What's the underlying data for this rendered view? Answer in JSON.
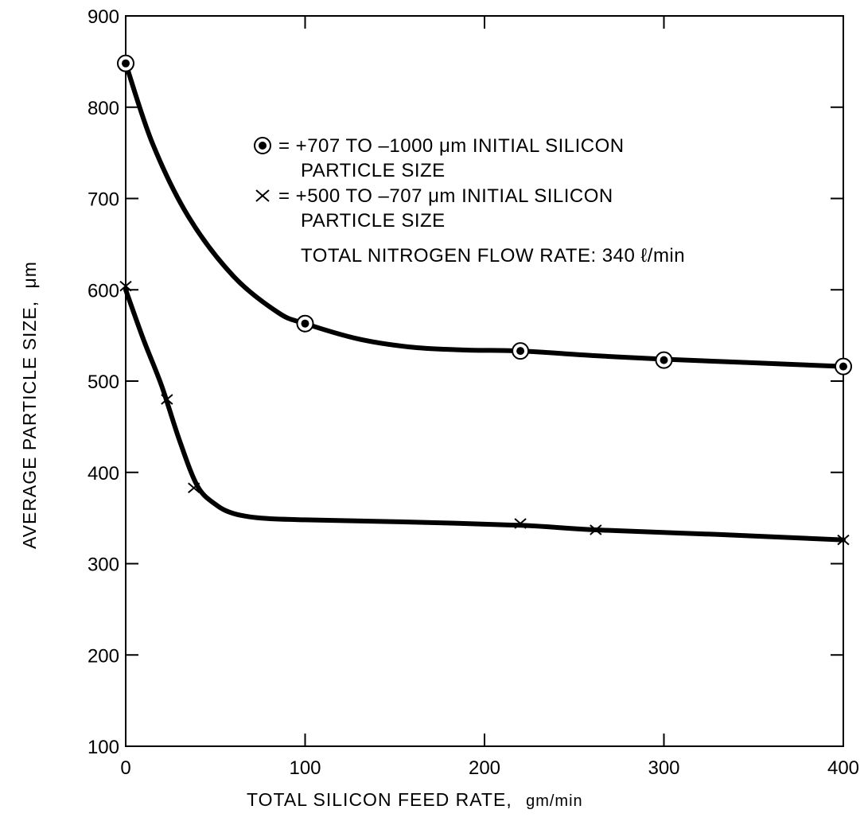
{
  "chart_data": {
    "type": "line",
    "xlabel": "TOTAL SILICON FEED RATE,",
    "xlabel_unit": "gm/min",
    "ylabel": "AVERAGE PARTICLE SIZE,",
    "ylabel_unit": "μm",
    "xlim": [
      0,
      400
    ],
    "ylim": [
      100,
      900
    ],
    "x_ticks": [
      0,
      100,
      200,
      300,
      400
    ],
    "y_ticks": [
      100,
      200,
      300,
      400,
      500,
      600,
      700,
      800,
      900
    ],
    "series": [
      {
        "marker": "circled-dot",
        "x": [
          0,
          100,
          220,
          300,
          400
        ],
        "y": [
          848,
          563,
          533,
          523,
          516
        ],
        "curve": [
          [
            0,
            848
          ],
          [
            15,
            760
          ],
          [
            35,
            680
          ],
          [
            60,
            615
          ],
          [
            85,
            575
          ],
          [
            100,
            563
          ],
          [
            130,
            546
          ],
          [
            160,
            537
          ],
          [
            190,
            534
          ],
          [
            220,
            533
          ],
          [
            260,
            528
          ],
          [
            300,
            524
          ],
          [
            350,
            520
          ],
          [
            400,
            516
          ]
        ]
      },
      {
        "marker": "x",
        "x": [
          0,
          23,
          38,
          220,
          262,
          400
        ],
        "y": [
          604,
          480,
          383,
          344,
          337,
          326
        ],
        "curve": [
          [
            0,
            600
          ],
          [
            10,
            545
          ],
          [
            20,
            495
          ],
          [
            30,
            435
          ],
          [
            40,
            385
          ],
          [
            50,
            365
          ],
          [
            60,
            355
          ],
          [
            75,
            350
          ],
          [
            100,
            348
          ],
          [
            150,
            346
          ],
          [
            220,
            342
          ],
          [
            262,
            337
          ],
          [
            330,
            332
          ],
          [
            400,
            326
          ]
        ]
      }
    ],
    "legend": [
      {
        "symbol": "circled-dot",
        "line1": "= +707 TO –1000 μm INITIAL SILICON",
        "line2": "PARTICLE SIZE"
      },
      {
        "symbol": "x",
        "line1": "= +500 TO –707 μm INITIAL SILICON",
        "line2": "PARTICLE SIZE"
      }
    ],
    "annotation": "TOTAL NITROGEN FLOW RATE:  340 ℓ/min",
    "grid": false
  }
}
